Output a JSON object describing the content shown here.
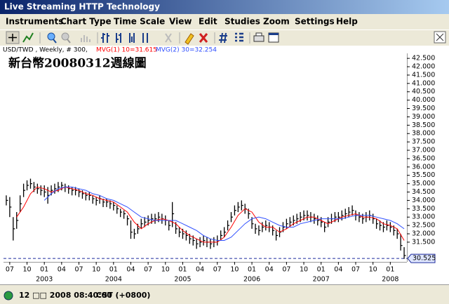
{
  "window_title": "Live Streaming HTTP Technology",
  "menu": [
    "Instruments",
    "Chart Type",
    "Time Scale",
    "View",
    "Edit",
    "Studies",
    "Zoom",
    "Settings",
    "Help"
  ],
  "info": {
    "symbol": "USD/TWD , Weekly, # 300,",
    "ma1": "MVG(1) 10=31.615",
    "ma2": "MVG(2) 30=32.254"
  },
  "status": {
    "date": "12 □□ 2008 08:40:00",
    "zone": "CST (+0800)"
  },
  "chart_data": {
    "type": "ohlc",
    "title": "新台幣20080312週線圖",
    "color": "#000000",
    "x": [
      2002.45,
      2002.5,
      2002.55,
      2002.6,
      2002.65,
      2002.7,
      2002.75,
      2002.8,
      2002.85,
      2002.9,
      2002.95,
      2003,
      2003.05,
      2003.1,
      2003.15,
      2003.2,
      2003.25,
      2003.3,
      2003.35,
      2003.4,
      2003.45,
      2003.5,
      2003.55,
      2003.6,
      2003.65,
      2003.7,
      2003.75,
      2003.8,
      2003.85,
      2003.9,
      2003.95,
      2004,
      2004.05,
      2004.1,
      2004.15,
      2004.2,
      2004.25,
      2004.3,
      2004.35,
      2004.4,
      2004.45,
      2004.5,
      2004.55,
      2004.6,
      2004.65,
      2004.7,
      2004.75,
      2004.8,
      2004.85,
      2004.9,
      2004.95,
      2005,
      2005.05,
      2005.1,
      2005.15,
      2005.2,
      2005.25,
      2005.3,
      2005.35,
      2005.4,
      2005.45,
      2005.5,
      2005.55,
      2005.6,
      2005.65,
      2005.7,
      2005.75,
      2005.8,
      2005.85,
      2005.9,
      2005.95,
      2006,
      2006.05,
      2006.1,
      2006.15,
      2006.2,
      2006.25,
      2006.3,
      2006.35,
      2006.4,
      2006.45,
      2006.5,
      2006.55,
      2006.6,
      2006.65,
      2006.7,
      2006.75,
      2006.8,
      2006.85,
      2006.9,
      2006.95,
      2007,
      2007.05,
      2007.1,
      2007.15,
      2007.2,
      2007.25,
      2007.3,
      2007.35,
      2007.4,
      2007.45,
      2007.5,
      2007.55,
      2007.6,
      2007.65,
      2007.7,
      2007.75,
      2007.8,
      2007.85,
      2007.9,
      2007.95,
      2008,
      2008.05,
      2008.1,
      2008.15,
      2008.2
    ],
    "high": [
      34.3,
      34.2,
      33.0,
      33.3,
      34.3,
      35.0,
      35.2,
      35.3,
      35.1,
      35.0,
      34.9,
      34.9,
      34.8,
      34.9,
      35.0,
      35.1,
      35.1,
      35.0,
      34.9,
      34.8,
      34.8,
      34.7,
      34.6,
      34.5,
      34.5,
      34.3,
      34.2,
      34.3,
      34.1,
      34.1,
      34.0,
      33.9,
      33.7,
      33.5,
      33.4,
      33.1,
      32.8,
      32.3,
      32.6,
      32.9,
      33.0,
      33.1,
      33.2,
      33.2,
      33.3,
      33.2,
      33.1,
      32.8,
      33.9,
      32.7,
      32.4,
      32.3,
      32.2,
      32.0,
      31.9,
      31.7,
      31.8,
      31.9,
      31.8,
      31.7,
      31.8,
      31.9,
      32.2,
      32.4,
      32.8,
      33.3,
      33.7,
      33.9,
      34.0,
      33.8,
      33.5,
      33.0,
      32.6,
      32.5,
      32.7,
      32.8,
      32.7,
      32.5,
      32.2,
      32.4,
      32.7,
      32.9,
      33.0,
      33.1,
      33.2,
      33.3,
      33.4,
      33.4,
      33.3,
      33.2,
      33.1,
      33.0,
      32.7,
      33.0,
      33.2,
      33.3,
      33.3,
      33.4,
      33.5,
      33.6,
      33.7,
      33.4,
      33.3,
      33.2,
      33.3,
      33.4,
      33.2,
      32.9,
      32.8,
      32.7,
      32.8,
      32.7,
      32.5,
      32.3,
      32.0,
      31.2
    ],
    "low": [
      33.7,
      33.0,
      31.6,
      32.3,
      33.3,
      34.2,
      34.6,
      34.7,
      34.5,
      34.4,
      34.3,
      34.2,
      33.8,
      34.3,
      34.4,
      34.5,
      34.6,
      34.5,
      34.4,
      34.3,
      34.3,
      34.2,
      34.1,
      34.0,
      34.0,
      33.8,
      33.7,
      33.8,
      33.6,
      33.6,
      33.5,
      33.4,
      33.2,
      33.0,
      32.9,
      32.5,
      31.7,
      31.7,
      32.0,
      32.3,
      32.4,
      32.5,
      32.6,
      32.6,
      32.7,
      32.6,
      32.5,
      32.2,
      32.4,
      32.0,
      31.8,
      31.7,
      31.6,
      31.4,
      31.3,
      31.1,
      31.2,
      31.3,
      31.2,
      31.1,
      31.2,
      31.3,
      31.6,
      31.8,
      32.2,
      32.7,
      33.1,
      33.3,
      33.4,
      33.2,
      32.9,
      32.3,
      32.0,
      31.9,
      32.1,
      32.2,
      32.1,
      31.9,
      31.6,
      31.8,
      32.1,
      32.3,
      32.4,
      32.5,
      32.6,
      32.7,
      32.8,
      32.8,
      32.7,
      32.6,
      32.5,
      32.4,
      32.1,
      32.4,
      32.6,
      32.7,
      32.7,
      32.8,
      32.9,
      33.0,
      33.1,
      32.8,
      32.7,
      32.6,
      32.7,
      32.8,
      32.6,
      32.3,
      32.2,
      32.1,
      32.2,
      32.1,
      31.9,
      31.7,
      31.0,
      30.5
    ],
    "close": [
      34.0,
      33.6,
      32.3,
      32.8,
      33.8,
      34.6,
      34.9,
      35.0,
      34.8,
      34.7,
      34.6,
      34.5,
      34.3,
      34.6,
      34.7,
      34.8,
      34.9,
      34.8,
      34.7,
      34.6,
      34.6,
      34.5,
      34.4,
      34.3,
      34.3,
      34.1,
      34.0,
      34.1,
      33.9,
      33.9,
      33.8,
      33.7,
      33.5,
      33.3,
      33.2,
      32.9,
      32.1,
      32.0,
      32.3,
      32.6,
      32.7,
      32.8,
      32.9,
      32.9,
      33.0,
      32.9,
      32.8,
      32.5,
      33.2,
      32.3,
      32.1,
      32.0,
      31.9,
      31.7,
      31.6,
      31.4,
      31.5,
      31.6,
      31.5,
      31.4,
      31.5,
      31.6,
      31.9,
      32.1,
      32.5,
      33.0,
      33.4,
      33.6,
      33.7,
      33.5,
      33.2,
      32.6,
      32.3,
      32.2,
      32.4,
      32.5,
      32.4,
      32.2,
      31.9,
      32.1,
      32.4,
      32.6,
      32.7,
      32.8,
      32.9,
      33.0,
      33.1,
      33.1,
      33.0,
      32.9,
      32.8,
      32.7,
      32.4,
      32.7,
      32.9,
      33.0,
      33.0,
      33.1,
      33.2,
      33.3,
      33.4,
      33.1,
      33.0,
      32.9,
      33.0,
      33.1,
      32.9,
      32.6,
      32.5,
      32.4,
      32.5,
      32.4,
      32.2,
      32.0,
      31.3,
      30.7
    ],
    "series": [
      {
        "color": "#ff0000",
        "x": [
          2002.6,
          2002.7,
          2002.8,
          2002.9,
          2003,
          2003.1,
          2003.2,
          2003.3,
          2003.4,
          2003.5,
          2003.6,
          2003.7,
          2003.8,
          2003.9,
          2004,
          2004.1,
          2004.2,
          2004.3,
          2004.4,
          2004.5,
          2004.6,
          2004.7,
          2004.8,
          2004.9,
          2005,
          2005.1,
          2005.2,
          2005.3,
          2005.4,
          2005.5,
          2005.6,
          2005.7,
          2005.8,
          2005.9,
          2006,
          2006.1,
          2006.2,
          2006.3,
          2006.4,
          2006.5,
          2006.6,
          2006.7,
          2006.8,
          2006.9,
          2007,
          2007.1,
          2007.2,
          2007.3,
          2007.4,
          2007.5,
          2007.6,
          2007.7,
          2007.8,
          2007.9,
          2008,
          2008.1,
          2008.2
        ],
        "values": [
          33.0,
          33.6,
          34.4,
          34.8,
          34.7,
          34.5,
          34.6,
          34.8,
          34.7,
          34.6,
          34.4,
          34.3,
          34.1,
          34.0,
          33.9,
          33.6,
          33.3,
          32.7,
          32.3,
          32.6,
          32.8,
          32.9,
          32.8,
          32.6,
          32.2,
          31.9,
          31.7,
          31.5,
          31.5,
          31.5,
          31.8,
          32.4,
          33.1,
          33.5,
          33.3,
          32.7,
          32.4,
          32.4,
          32.1,
          32.3,
          32.6,
          32.8,
          33.0,
          33.0,
          32.8,
          32.6,
          32.8,
          33.0,
          33.1,
          33.2,
          33.0,
          33.0,
          32.9,
          32.6,
          32.5,
          32.3,
          31.6
        ]
      },
      {
        "color": "#3050ff",
        "x": [
          2003,
          2003.1,
          2003.2,
          2003.3,
          2003.4,
          2003.5,
          2003.6,
          2003.7,
          2003.8,
          2003.9,
          2004,
          2004.1,
          2004.2,
          2004.3,
          2004.4,
          2004.5,
          2004.6,
          2004.7,
          2004.8,
          2004.9,
          2005,
          2005.1,
          2005.2,
          2005.3,
          2005.4,
          2005.5,
          2005.6,
          2005.7,
          2005.8,
          2005.9,
          2006,
          2006.1,
          2006.2,
          2006.3,
          2006.4,
          2006.5,
          2006.6,
          2006.7,
          2006.8,
          2006.9,
          2007,
          2007.1,
          2007.2,
          2007.3,
          2007.4,
          2007.5,
          2007.6,
          2007.7,
          2007.8,
          2007.9,
          2008,
          2008.1,
          2008.2
        ],
        "values": [
          34.0,
          34.4,
          34.7,
          34.8,
          34.8,
          34.7,
          34.6,
          34.4,
          34.3,
          34.1,
          34.0,
          33.8,
          33.6,
          33.3,
          33.0,
          32.9,
          32.8,
          32.8,
          32.8,
          32.8,
          32.6,
          32.4,
          32.2,
          31.9,
          31.7,
          31.6,
          31.6,
          31.8,
          32.2,
          32.6,
          32.9,
          33.0,
          32.9,
          32.7,
          32.5,
          32.4,
          32.4,
          32.6,
          32.7,
          32.8,
          32.9,
          32.9,
          32.9,
          32.9,
          33.0,
          33.1,
          33.1,
          33.1,
          33.0,
          32.9,
          32.8,
          32.6,
          32.3
        ]
      }
    ],
    "last_price": 30.525,
    "last_price_color": "#1c2a9c",
    "xlim": [
      2002.41,
      2008.24
    ],
    "ylim": [
      30.32,
      42.8
    ],
    "yticks": [
      {
        "value": 31.5,
        "label": "31.500"
      },
      {
        "value": 32,
        "label": "32.000"
      },
      {
        "value": 32.5,
        "label": "32.500"
      },
      {
        "value": 33,
        "label": "33.000"
      },
      {
        "value": 33.5,
        "label": "33.500"
      },
      {
        "value": 34,
        "label": "34.000"
      },
      {
        "value": 34.5,
        "label": "34.500"
      },
      {
        "value": 35,
        "label": "35.000"
      },
      {
        "value": 35.5,
        "label": "35.500"
      },
      {
        "value": 36,
        "label": "36.000"
      },
      {
        "value": 36.5,
        "label": "36.500"
      },
      {
        "value": 37,
        "label": "37.000"
      },
      {
        "value": 37.5,
        "label": "37.500"
      },
      {
        "value": 38,
        "label": "38.000"
      },
      {
        "value": 38.5,
        "label": "38.500"
      },
      {
        "value": 39,
        "label": "39.000"
      },
      {
        "value": 39.5,
        "label": "39.500"
      },
      {
        "value": 40,
        "label": "40.000"
      },
      {
        "value": 40.5,
        "label": "40.500"
      },
      {
        "value": 41,
        "label": "41.000"
      },
      {
        "value": 41.5,
        "label": "41.500"
      },
      {
        "value": 42,
        "label": "42.000"
      },
      {
        "value": 42.5,
        "label": "42.500"
      }
    ],
    "xticks": [
      {
        "value": 2002.5,
        "label": "07"
      },
      {
        "value": 2002.75,
        "label": "10"
      },
      {
        "value": 2003,
        "label": "01"
      },
      {
        "value": 2003.25,
        "label": "04"
      },
      {
        "value": 2003.5,
        "label": "07"
      },
      {
        "value": 2003.75,
        "label": "10"
      },
      {
        "value": 2004,
        "label": "01"
      },
      {
        "value": 2004.25,
        "label": "04"
      },
      {
        "value": 2004.5,
        "label": "07"
      },
      {
        "value": 2004.75,
        "label": "10"
      },
      {
        "value": 2005,
        "label": "01"
      },
      {
        "value": 2005.25,
        "label": "04"
      },
      {
        "value": 2005.5,
        "label": "07"
      },
      {
        "value": 2005.75,
        "label": "10"
      },
      {
        "value": 2006,
        "label": "01"
      },
      {
        "value": 2006.25,
        "label": "04"
      },
      {
        "value": 2006.5,
        "label": "07"
      },
      {
        "value": 2006.75,
        "label": "10"
      },
      {
        "value": 2007,
        "label": "01"
      },
      {
        "value": 2007.25,
        "label": "04"
      },
      {
        "value": 2007.5,
        "label": "07"
      },
      {
        "value": 2007.75,
        "label": "10"
      },
      {
        "value": 2008,
        "label": "01"
      }
    ],
    "year_labels": [
      2003,
      2004,
      2005,
      2006,
      2007,
      2008
    ]
  }
}
